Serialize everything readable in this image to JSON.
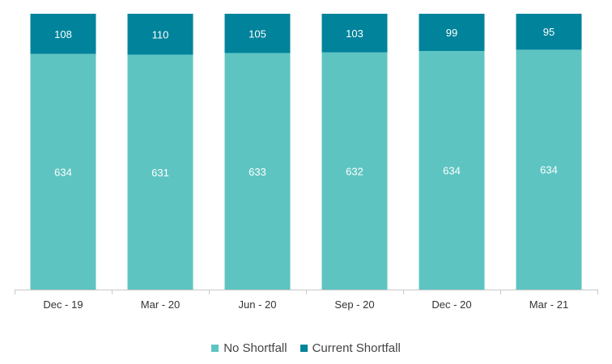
{
  "chart_data": {
    "type": "bar",
    "stacked": true,
    "categories": [
      "Dec - 19",
      "Mar - 20",
      "Jun - 20",
      "Sep - 20",
      "Dec - 20",
      "Mar - 21"
    ],
    "series": [
      {
        "name": "No Shortfall",
        "values": [
          634,
          631,
          633,
          632,
          634,
          634
        ],
        "color": "#5ec4c1"
      },
      {
        "name": "Current Shortfall",
        "values": [
          108,
          110,
          105,
          103,
          99,
          95
        ],
        "color": "#00839b"
      }
    ],
    "title": "",
    "xlabel": "",
    "ylabel": "",
    "normalized_to_total": true,
    "grid": false,
    "legend_position": "bottom"
  },
  "legend": {
    "items": [
      {
        "label": "No Shortfall",
        "color": "#5ec4c1"
      },
      {
        "label": "Current Shortfall",
        "color": "#00839b"
      }
    ]
  }
}
